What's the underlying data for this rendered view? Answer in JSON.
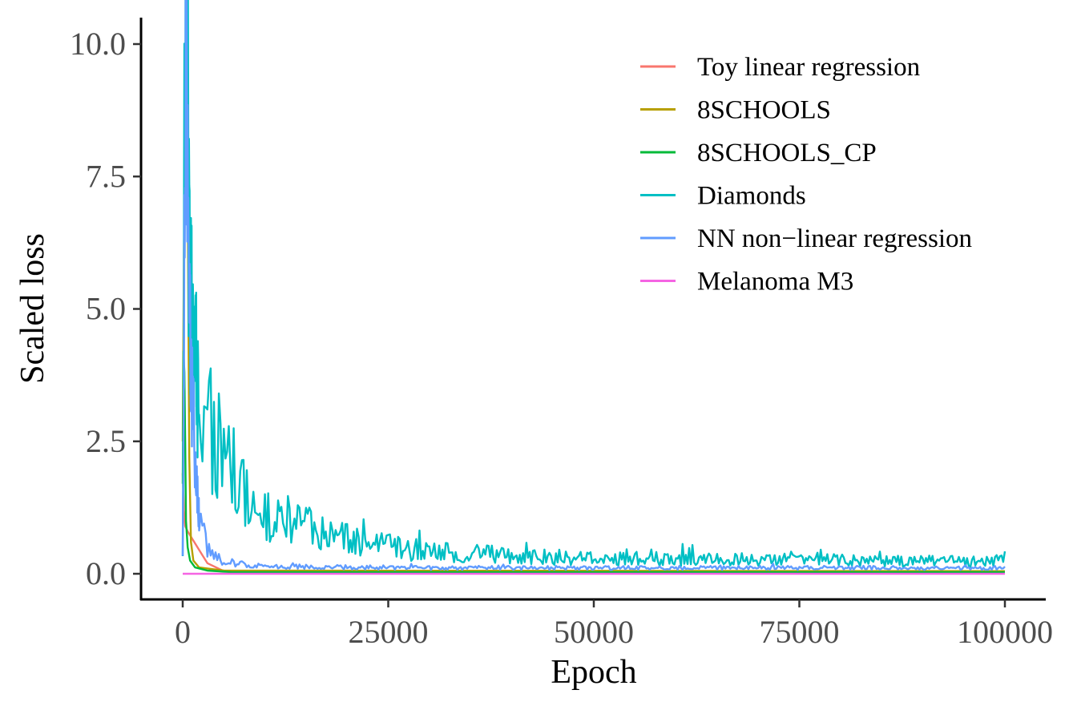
{
  "chart_data": {
    "type": "line",
    "xlabel": "Epoch",
    "ylabel": "Scaled loss",
    "xlim": [
      0,
      100000
    ],
    "ylim": [
      0,
      10
    ],
    "xticks": [
      0,
      25000,
      50000,
      75000,
      100000
    ],
    "xtick_labels": [
      "0",
      "25000",
      "50000",
      "75000",
      "100000"
    ],
    "yticks": [
      0,
      2.5,
      5,
      7.5,
      10
    ],
    "ytick_labels": [
      "0.0",
      "2.5",
      "5.0",
      "7.5",
      "10.0"
    ],
    "grid": false,
    "legend_position": "top-right",
    "series": [
      {
        "name": "Toy linear regression",
        "color": "#F8766D",
        "x": [
          0,
          150,
          300,
          600,
          1000,
          2000,
          3000,
          5000,
          10000,
          100000
        ],
        "y": [
          1.9,
          1.2,
          0.9,
          0.8,
          0.7,
          0.45,
          0.2,
          0.05,
          0.02,
          0.02
        ]
      },
      {
        "name": "8SCHOOLS",
        "color": "#B79F00",
        "x": [
          0,
          150,
          300,
          450,
          600,
          800,
          1000,
          1300,
          2000,
          5000,
          100000
        ],
        "y": [
          2.5,
          6.0,
          8.8,
          9.5,
          7.2,
          2.2,
          0.6,
          0.25,
          0.12,
          0.06,
          0.05
        ]
      },
      {
        "name": "8SCHOOLS_CP",
        "color": "#00BA38",
        "x": [
          0,
          100,
          200,
          300,
          400,
          600,
          900,
          1500,
          3000,
          6000,
          100000
        ],
        "y": [
          1.7,
          4.2,
          3.8,
          2.5,
          1.0,
          0.5,
          0.25,
          0.12,
          0.06,
          0.03,
          0.03
        ]
      },
      {
        "name": "Diamonds",
        "color": "#00BFC4",
        "x": [
          0,
          300,
          600,
          800,
          1200,
          2500,
          5000,
          10000,
          20000,
          30000,
          50000,
          75000,
          100000
        ],
        "y": [
          0.3,
          9.5,
          9.8,
          4.5,
          3.5,
          2.7,
          1.8,
          1.0,
          0.55,
          0.35,
          0.25,
          0.22,
          0.2
        ],
        "noise": 0.5
      },
      {
        "name": "NN non−linear regression",
        "color": "#619CFF",
        "x": [
          0,
          200,
          400,
          600,
          800,
          1000,
          1500,
          2000,
          3000,
          5000,
          10000,
          30000,
          100000
        ],
        "y": [
          0.3,
          5.0,
          9.4,
          7.0,
          4.2,
          3.5,
          2.0,
          1.0,
          0.4,
          0.2,
          0.12,
          0.1,
          0.1
        ],
        "noise": 0.35
      },
      {
        "name": "Melanoma M3",
        "color": "#F564E3",
        "x": [
          0,
          100000
        ],
        "y": [
          0.0,
          0.0
        ]
      }
    ]
  }
}
